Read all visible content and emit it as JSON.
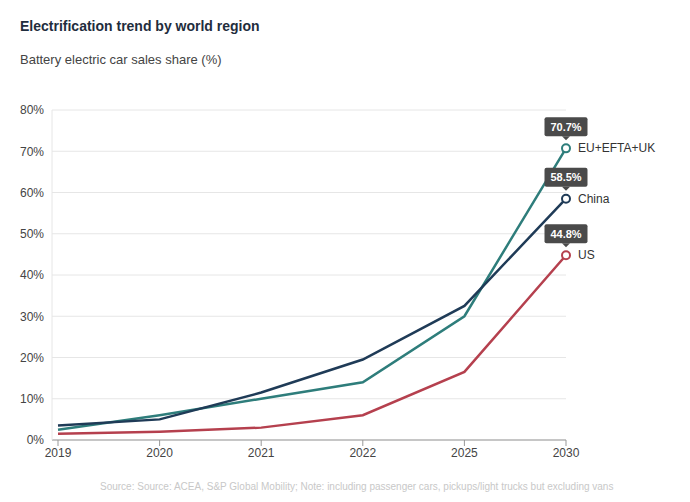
{
  "chart_data": {
    "type": "line",
    "title": "Electrification trend by world region",
    "subtitle": "Battery electric car sales share (%)",
    "source": "Source: Source: ACEA, S&P Global Mobility; Note: including passenger cars, pickups/light trucks but excluding vans",
    "categories": [
      "2019",
      "2020",
      "2021",
      "2022",
      "2025",
      "2030"
    ],
    "series": [
      {
        "name": "EU+EFTA+UK",
        "color": "#2e7d7b",
        "values": [
          2.5,
          6,
          10,
          14,
          30,
          70.7
        ],
        "value_labels": [
          null,
          null,
          null,
          null,
          null,
          "70.7%"
        ]
      },
      {
        "name": "China",
        "color": "#1f3b57",
        "values": [
          3.5,
          5,
          11.5,
          19.5,
          32.5,
          58.5
        ],
        "value_labels": [
          null,
          null,
          null,
          null,
          null,
          "58.5%"
        ]
      },
      {
        "name": "US",
        "color": "#b5404e",
        "values": [
          1.5,
          2,
          3,
          6,
          16.5,
          44.8
        ],
        "value_labels": [
          null,
          null,
          null,
          null,
          null,
          "44.8%"
        ]
      }
    ],
    "ylim": [
      0,
      80
    ],
    "yticks": [
      {
        "value": 0,
        "label": "0%"
      },
      {
        "value": 10,
        "label": "10%"
      },
      {
        "value": 20,
        "label": "20%"
      },
      {
        "value": 30,
        "label": "30%"
      },
      {
        "value": 40,
        "label": "40%"
      },
      {
        "value": 50,
        "label": "50%"
      },
      {
        "value": 60,
        "label": "60%"
      },
      {
        "value": 70,
        "label": "70%"
      },
      {
        "value": 80,
        "label": "80%"
      }
    ],
    "grid": true
  }
}
